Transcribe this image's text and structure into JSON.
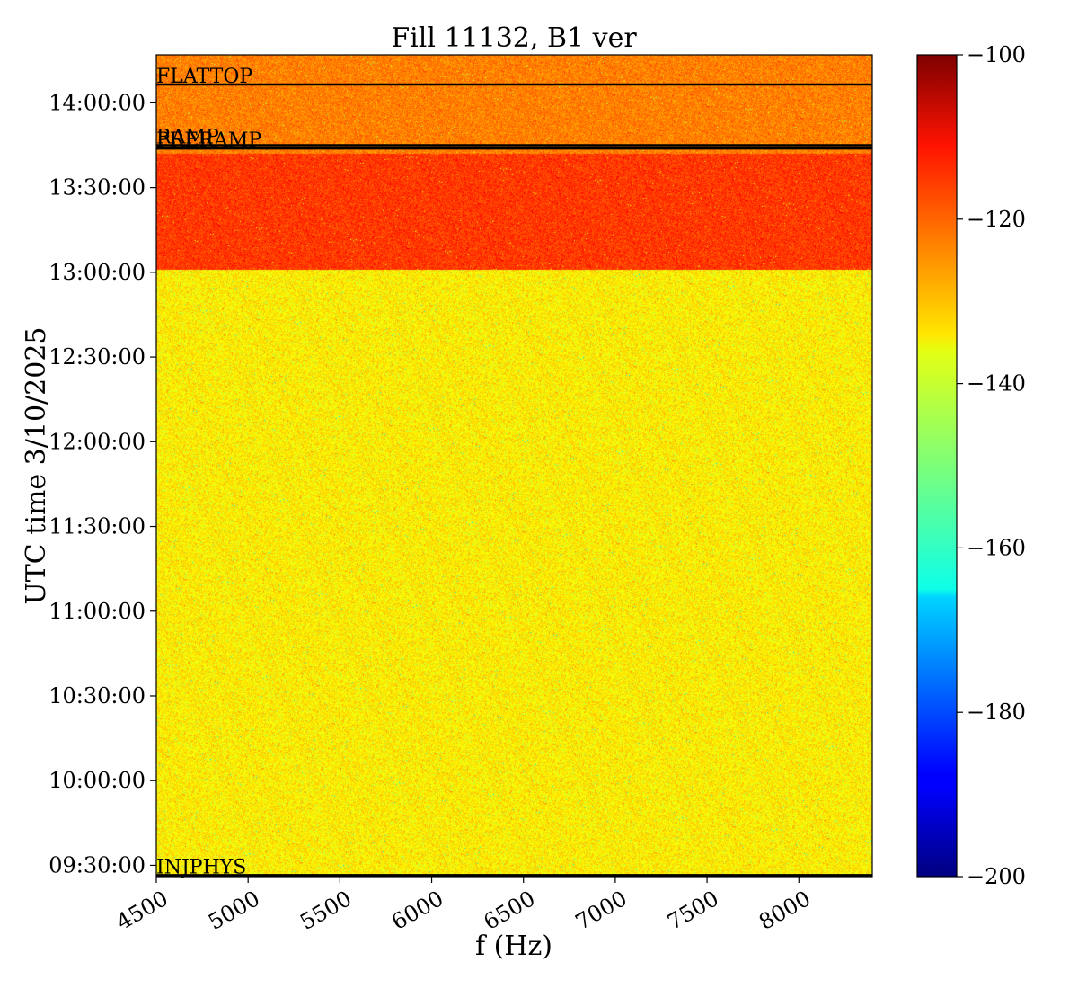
{
  "chart_data": {
    "type": "heatmap",
    "title": "Fill 11132, B1 ver",
    "xlabel": "f (Hz)",
    "ylabel": "UTC time 3/10/2025",
    "xlim": [
      4500,
      8400
    ],
    "x_ticks": [
      4500,
      5000,
      5500,
      6000,
      6500,
      7000,
      7500,
      8000
    ],
    "ylim": [
      "09:26:00",
      "14:17:00"
    ],
    "y_ticks": [
      "09:30:00",
      "10:00:00",
      "10:30:00",
      "11:00:00",
      "11:30:00",
      "12:00:00",
      "12:30:00",
      "13:00:00",
      "13:30:00",
      "14:00:00"
    ],
    "colorbar": {
      "colormap": "jet",
      "range": [
        -200,
        -100
      ],
      "ticks": [
        -100,
        -120,
        -140,
        -160,
        -180,
        -200
      ],
      "tick_labels": [
        "−100",
        "−120",
        "−140",
        "−160",
        "−180",
        "−200"
      ]
    },
    "regions": [
      {
        "start": "09:26:00",
        "end": "13:01:00",
        "typical_value": -136,
        "spread": 5
      },
      {
        "start": "13:01:00",
        "end": "13:42:00",
        "typical_value": -118,
        "spread": 4
      },
      {
        "start": "13:42:00",
        "end": "14:17:00",
        "typical_value": -125,
        "spread": 4
      }
    ],
    "beam_mode_markers": [
      {
        "label": "INJPHYS",
        "time": "09:26:30"
      },
      {
        "label": "PRERAMP",
        "time": "13:43:50"
      },
      {
        "label": "RAMP",
        "time": "13:45:00"
      },
      {
        "label": "FLATTOP",
        "time": "14:06:30"
      }
    ],
    "grid": false
  }
}
